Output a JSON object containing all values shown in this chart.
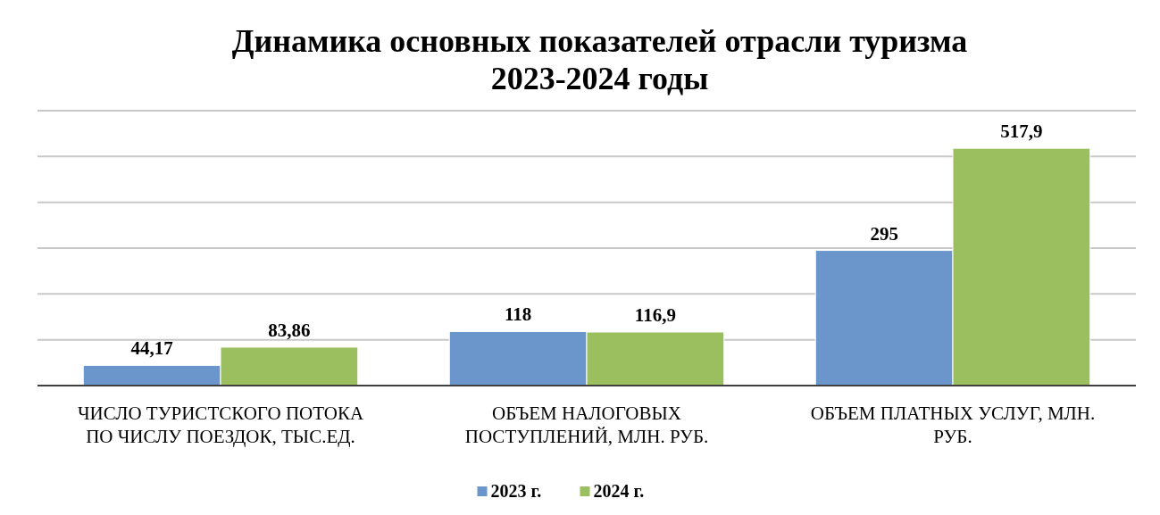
{
  "chart_data": {
    "type": "bar",
    "title": "Динамика основных показателей отрасли туризма\n2023-2024 годы",
    "categories": [
      "ЧИСЛО ТУРИСТСКОГО ПОТОКА ПО ЧИСЛУ ПОЕЗДОК, ТЫС.ЕД.",
      "ОБЪЕМ НАЛОГОВЫХ ПОСТУПЛЕНИЙ, МЛН. РУБ.",
      "ОБЪЕМ ПЛАТНЫХ УСЛУГ, МЛН. РУБ."
    ],
    "series": [
      {
        "name": "2023 г.",
        "color": "#6a96cb",
        "values": [
          44.17,
          118,
          295
        ],
        "value_labels": [
          "44,17",
          "118",
          "295"
        ]
      },
      {
        "name": "2024 г.",
        "color": "#9bbf5f",
        "values": [
          83.86,
          116.9,
          517.9
        ],
        "value_labels": [
          "83,86",
          "116,9",
          "517,9"
        ]
      }
    ],
    "ylim": [
      0,
      600
    ],
    "yticks": [
      {
        "value": 0,
        "label": null
      },
      {
        "value": 100,
        "label": null
      },
      {
        "value": 200,
        "label": null
      },
      {
        "value": 300,
        "label": null
      },
      {
        "value": 400,
        "label": null
      },
      {
        "value": 500,
        "label": null
      },
      {
        "value": 600,
        "label": null
      }
    ],
    "grid": "y",
    "tick_labels": "x",
    "legend": "bottom"
  }
}
